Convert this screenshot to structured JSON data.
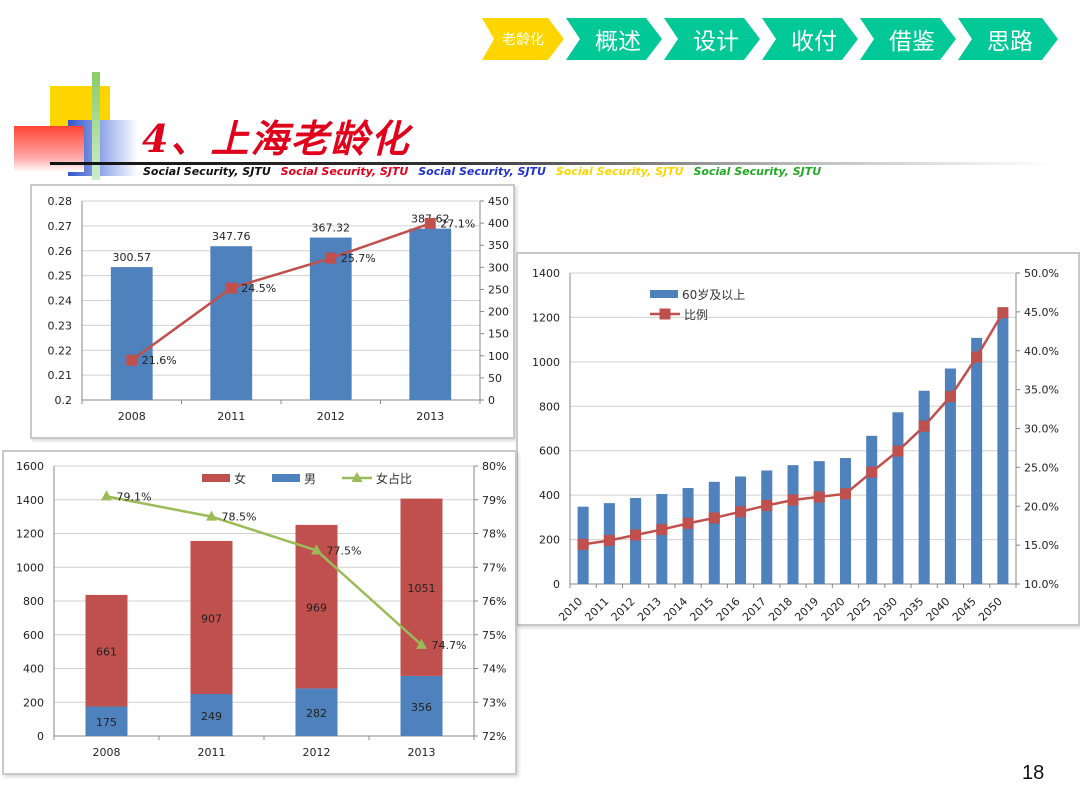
{
  "nav": {
    "items": [
      {
        "label": "老龄化",
        "active": true
      },
      {
        "label": "概述",
        "active": false
      },
      {
        "label": "设计",
        "active": false
      },
      {
        "label": "收付",
        "active": false
      },
      {
        "label": "借鉴",
        "active": false
      },
      {
        "label": "思路",
        "active": false
      }
    ],
    "active_color": "#ffd500",
    "item_color": "#00c896"
  },
  "title": "4、上海老龄化",
  "subtitle_items": [
    {
      "text": "Social Security, SJTU",
      "color": "#111111"
    },
    {
      "text": "Social Security, SJTU",
      "color": "#e0001b"
    },
    {
      "text": "Social Security, SJTU",
      "color": "#2233cc"
    },
    {
      "text": "Social Security, SJTU",
      "color": "#ffd500"
    },
    {
      "text": "Social Security, SJTU",
      "color": "#22a822"
    }
  ],
  "page_number": "18",
  "chart_data": [
    {
      "type": "bar",
      "categories": [
        "2008",
        "2011",
        "2012",
        "2013"
      ],
      "series": [
        {
          "values": [
            300.57,
            347.76,
            367.32,
            387.62
          ],
          "labels": [
            "300.57",
            "347.76",
            "367.32",
            "387.62"
          ],
          "color": "#4f81bd",
          "axis": "right"
        },
        {
          "type": "line",
          "values": [
            0.216,
            0.245,
            0.257,
            0.271
          ],
          "labels": [
            "21.6%",
            "24.5%",
            "25.7%",
            "27.1%"
          ],
          "color": "#c0504d",
          "axis": "left"
        }
      ],
      "left_axis": {
        "min": 0.2,
        "max": 0.28,
        "ticks": [
          "0.2",
          "0.21",
          "0.22",
          "0.23",
          "0.24",
          "0.25",
          "0.26",
          "0.27",
          "0.28"
        ]
      },
      "right_axis": {
        "min": 0,
        "max": 450,
        "ticks": [
          "0",
          "50",
          "100",
          "150",
          "200",
          "250",
          "300",
          "350",
          "400",
          "450"
        ]
      },
      "grid": true
    },
    {
      "type": "bar",
      "categories": [
        "2010",
        "2011",
        "2012",
        "2013",
        "2014",
        "2015",
        "2016",
        "2017",
        "2018",
        "2019",
        "2020",
        "2025",
        "2030",
        "2035",
        "2040",
        "2045",
        "2050"
      ],
      "series": [
        {
          "name": "60岁及以上",
          "values": [
            348,
            364,
            387,
            405,
            432,
            460,
            484,
            511,
            535,
            553,
            567,
            667,
            773,
            870,
            970,
            1108,
            1215
          ],
          "color": "#4f81bd",
          "axis": "left"
        },
        {
          "name": "比例",
          "type": "line",
          "values": [
            0.151,
            0.156,
            0.163,
            0.17,
            0.178,
            0.185,
            0.193,
            0.201,
            0.208,
            0.212,
            0.216,
            0.244,
            0.271,
            0.303,
            0.341,
            0.392,
            0.449
          ],
          "color": "#c0504d",
          "axis": "right"
        }
      ],
      "left_axis": {
        "min": 0,
        "max": 1400,
        "ticks": [
          "0",
          "200",
          "400",
          "600",
          "800",
          "1000",
          "1200",
          "1400"
        ]
      },
      "right_axis": {
        "min": 0.1,
        "max": 0.5,
        "ticks": [
          "10.0%",
          "15.0%",
          "20.0%",
          "25.0%",
          "30.0%",
          "35.0%",
          "40.0%",
          "45.0%",
          "50.0%"
        ]
      },
      "legend": "top-center",
      "grid": true
    },
    {
      "type": "bar",
      "stacked": true,
      "categories": [
        "2008",
        "2011",
        "2012",
        "2013"
      ],
      "series": [
        {
          "name": "女",
          "values": [
            661,
            907,
            969,
            1051
          ],
          "labels": [
            "661",
            "907",
            "969",
            "1051"
          ],
          "color": "#c0504d",
          "axis": "left"
        },
        {
          "name": "男",
          "values": [
            175,
            249,
            282,
            356
          ],
          "labels": [
            "175",
            "249",
            "282",
            "356"
          ],
          "color": "#4f81bd",
          "axis": "left"
        },
        {
          "name": "女占比",
          "type": "line",
          "values": [
            0.791,
            0.785,
            0.775,
            0.747
          ],
          "labels": [
            "79.1%",
            "78.5%",
            "77.5%",
            "74.7%"
          ],
          "color": "#9bbb59",
          "axis": "right"
        }
      ],
      "left_axis": {
        "min": 0,
        "max": 1600,
        "ticks": [
          "0",
          "200",
          "400",
          "600",
          "800",
          "1000",
          "1200",
          "1400",
          "1600"
        ]
      },
      "right_axis": {
        "min": 0.72,
        "max": 0.8,
        "ticks": [
          "72%",
          "73%",
          "74%",
          "75%",
          "76%",
          "77%",
          "78%",
          "79%",
          "80%"
        ]
      },
      "legend": "top-center",
      "grid": true
    }
  ]
}
